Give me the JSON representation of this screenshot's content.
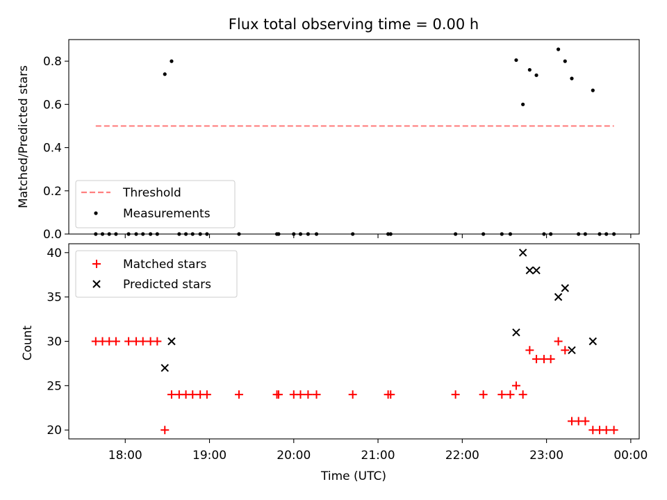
{
  "chart_data": [
    {
      "type": "scatter",
      "title": "Flux total observing time = 0.00 h",
      "xlabel": "",
      "ylabel": "Matched/Predicted stars",
      "xlim_hours": [
        17.33,
        24.1
      ],
      "ylim": [
        0,
        0.9
      ],
      "yticks": [
        "0.0",
        "0.2",
        "0.4",
        "0.6",
        "0.8"
      ],
      "xticks": [
        "18:00",
        "19:00",
        "20:00",
        "21:00",
        "22:00",
        "23:00",
        "00:00"
      ],
      "legend": "lower-left",
      "series": [
        {
          "name": "Threshold",
          "kind": "dashed-line",
          "color": "#ff7f7f",
          "x_range_hours": [
            17.65,
            23.8
          ],
          "value": 0.5
        },
        {
          "name": "Measurements",
          "kind": "dot",
          "color": "#000000",
          "points": [
            [
              17.65,
              0
            ],
            [
              17.73,
              0
            ],
            [
              17.81,
              0
            ],
            [
              17.89,
              0
            ],
            [
              18.04,
              0
            ],
            [
              18.13,
              0
            ],
            [
              18.21,
              0
            ],
            [
              18.3,
              0
            ],
            [
              18.38,
              0
            ],
            [
              18.47,
              0.74
            ],
            [
              18.55,
              0.8
            ],
            [
              18.64,
              0
            ],
            [
              18.72,
              0
            ],
            [
              18.8,
              0
            ],
            [
              18.89,
              0
            ],
            [
              18.97,
              0
            ],
            [
              19.35,
              0
            ],
            [
              19.8,
              0
            ],
            [
              19.82,
              0
            ],
            [
              20.0,
              0
            ],
            [
              20.08,
              0
            ],
            [
              20.17,
              0
            ],
            [
              20.27,
              0
            ],
            [
              20.7,
              0
            ],
            [
              21.12,
              0
            ],
            [
              21.15,
              0
            ],
            [
              21.92,
              0
            ],
            [
              22.25,
              0
            ],
            [
              22.47,
              0
            ],
            [
              22.57,
              0
            ],
            [
              22.64,
              0.805
            ],
            [
              22.72,
              0.6
            ],
            [
              22.8,
              0.76
            ],
            [
              22.88,
              0.735
            ],
            [
              22.97,
              0
            ],
            [
              23.05,
              0
            ],
            [
              23.14,
              0.855
            ],
            [
              23.22,
              0.8
            ],
            [
              23.3,
              0.72
            ],
            [
              23.38,
              0
            ],
            [
              23.46,
              0
            ],
            [
              23.55,
              0.665
            ],
            [
              23.63,
              0
            ],
            [
              23.71,
              0
            ],
            [
              23.8,
              0
            ]
          ]
        }
      ]
    },
    {
      "type": "scatter",
      "title": "",
      "xlabel": "Time (UTC)",
      "ylabel": "Count",
      "xlim_hours": [
        17.33,
        24.1
      ],
      "ylim": [
        19,
        41
      ],
      "yticks": [
        "20",
        "25",
        "30",
        "35",
        "40"
      ],
      "xticks": [
        "18:00",
        "19:00",
        "20:00",
        "21:00",
        "22:00",
        "23:00",
        "00:00"
      ],
      "legend": "upper-left",
      "series": [
        {
          "name": "Matched stars",
          "kind": "plus",
          "color": "#ff0000",
          "points": [
            [
              17.65,
              30
            ],
            [
              17.73,
              30
            ],
            [
              17.81,
              30
            ],
            [
              17.89,
              30
            ],
            [
              18.04,
              30
            ],
            [
              18.13,
              30
            ],
            [
              18.21,
              30
            ],
            [
              18.3,
              30
            ],
            [
              18.38,
              30
            ],
            [
              18.47,
              20
            ],
            [
              18.55,
              24
            ],
            [
              18.64,
              24
            ],
            [
              18.72,
              24
            ],
            [
              18.8,
              24
            ],
            [
              18.89,
              24
            ],
            [
              18.97,
              24
            ],
            [
              19.35,
              24
            ],
            [
              19.8,
              24
            ],
            [
              19.82,
              24
            ],
            [
              20.0,
              24
            ],
            [
              20.08,
              24
            ],
            [
              20.17,
              24
            ],
            [
              20.27,
              24
            ],
            [
              20.7,
              24
            ],
            [
              21.12,
              24
            ],
            [
              21.15,
              24
            ],
            [
              21.92,
              24
            ],
            [
              22.25,
              24
            ],
            [
              22.47,
              24
            ],
            [
              22.57,
              24
            ],
            [
              22.64,
              25
            ],
            [
              22.72,
              24
            ],
            [
              22.8,
              29
            ],
            [
              22.88,
              28
            ],
            [
              22.97,
              28
            ],
            [
              23.05,
              28
            ],
            [
              23.14,
              30
            ],
            [
              23.22,
              29
            ],
            [
              23.3,
              21
            ],
            [
              23.38,
              21
            ],
            [
              23.46,
              21
            ],
            [
              23.55,
              20
            ],
            [
              23.63,
              20
            ],
            [
              23.71,
              20
            ],
            [
              23.8,
              20
            ]
          ]
        },
        {
          "name": "Predicted stars",
          "kind": "x",
          "color": "#000000",
          "points": [
            [
              18.47,
              27
            ],
            [
              18.55,
              30
            ],
            [
              22.64,
              31
            ],
            [
              22.72,
              40
            ],
            [
              22.8,
              38
            ],
            [
              22.88,
              38
            ],
            [
              23.14,
              35
            ],
            [
              23.22,
              36
            ],
            [
              23.3,
              29
            ],
            [
              23.55,
              30
            ]
          ]
        }
      ]
    }
  ]
}
